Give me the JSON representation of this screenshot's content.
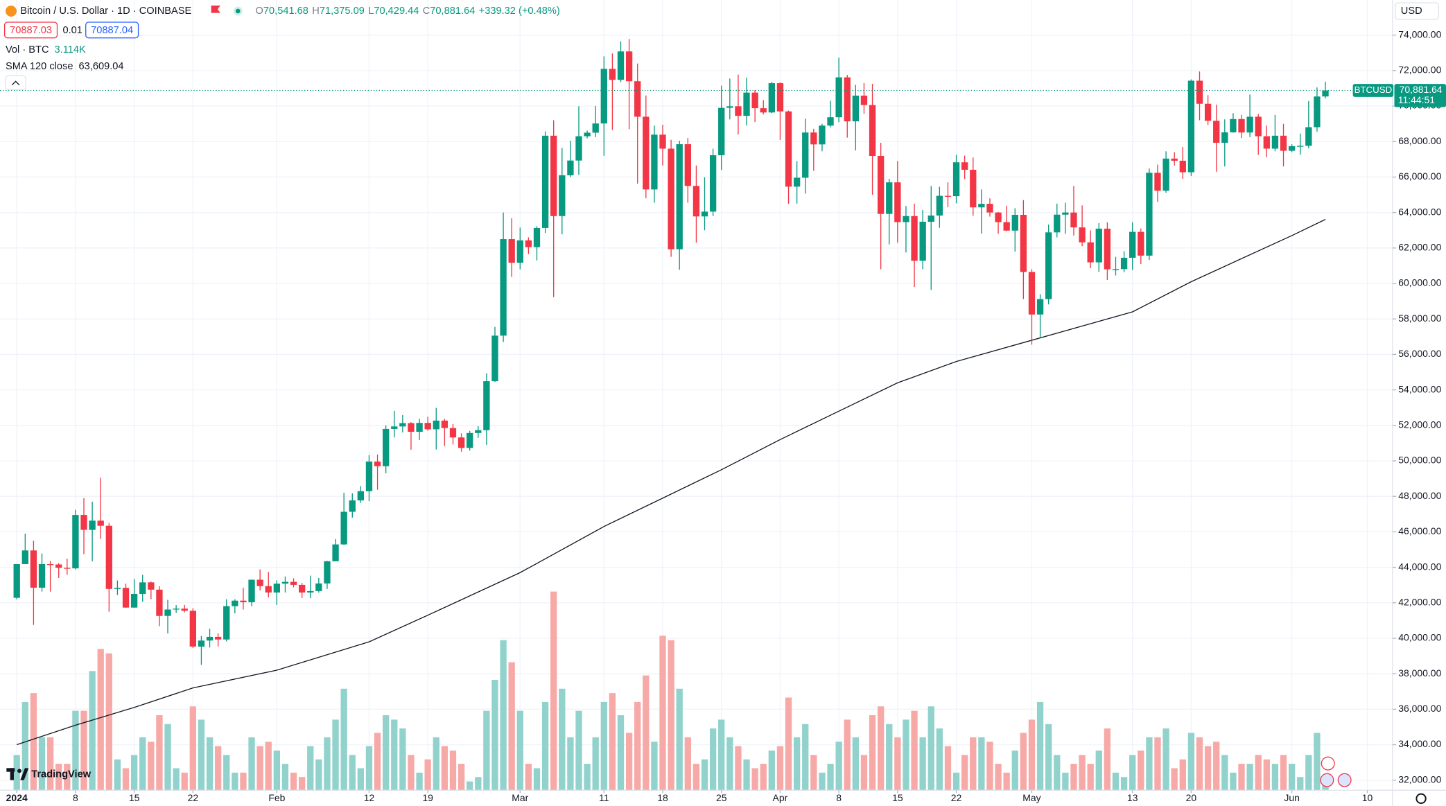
{
  "chart_data": {
    "type": "candlestick",
    "title": "Bitcoin / U.S. Dollar · 1D · COINBASE",
    "legend_fields": [
      {
        "key": "O",
        "value": "70,541.68"
      },
      {
        "key": "H",
        "value": "71,375.09"
      },
      {
        "key": "L",
        "value": "70,429.44"
      },
      {
        "key": "C",
        "value": "70,881.64"
      }
    ],
    "change": "+339.32 (+0.48%)",
    "bid": "70887.03",
    "spread": "0.01",
    "ask": "70887.04",
    "volume_label": "Vol · BTC",
    "volume_text": "3.114K",
    "sma_label": "SMA 120 close",
    "sma_text": "63,609.04",
    "currency": "USD",
    "price_tag": {
      "symbol": "BTCUSD",
      "price": "70,881.64",
      "countdown": "11:44:51"
    },
    "logo": "TradingView",
    "up_color": "#089981",
    "down_color": "#f23645",
    "volume_up_color": "#92d2cc",
    "volume_down_color": "#f7a9a7",
    "grid": true,
    "xlim": [
      "2023-12-30",
      "2024-06-13"
    ],
    "ylim": [
      31430,
      75980
    ],
    "xticks": [
      {
        "value": "2024-01-01",
        "label": "2024"
      },
      {
        "value": "2024-01-08",
        "label": "8"
      },
      {
        "value": "2024-01-15",
        "label": "15"
      },
      {
        "value": "2024-01-22",
        "label": "22"
      },
      {
        "value": "2024-02-01",
        "label": "Feb"
      },
      {
        "value": "2024-02-12",
        "label": "12"
      },
      {
        "value": "2024-02-19",
        "label": "19"
      },
      {
        "value": "2024-03-01",
        "label": "Mar"
      },
      {
        "value": "2024-03-11",
        "label": "11"
      },
      {
        "value": "2024-03-18",
        "label": "18"
      },
      {
        "value": "2024-03-25",
        "label": "25"
      },
      {
        "value": "2024-04-01",
        "label": "Apr"
      },
      {
        "value": "2024-04-08",
        "label": "8"
      },
      {
        "value": "2024-04-15",
        "label": "15"
      },
      {
        "value": "2024-04-22",
        "label": "22"
      },
      {
        "value": "2024-05-01",
        "label": "May"
      },
      {
        "value": "2024-05-13",
        "label": "13"
      },
      {
        "value": "2024-05-20",
        "label": "20"
      },
      {
        "value": "2024-06-01",
        "label": "Jun"
      },
      {
        "value": "2024-06-10",
        "label": "10"
      }
    ],
    "yticks": [
      {
        "value": 32000,
        "label": "32,000.00"
      },
      {
        "value": 34000,
        "label": "34,000.00"
      },
      {
        "value": 36000,
        "label": "36,000.00"
      },
      {
        "value": 38000,
        "label": "38,000.00"
      },
      {
        "value": 40000,
        "label": "40,000.00"
      },
      {
        "value": 42000,
        "label": "42,000.00"
      },
      {
        "value": 44000,
        "label": "44,000.00"
      },
      {
        "value": 46000,
        "label": "46,000.00"
      },
      {
        "value": 48000,
        "label": "48,000.00"
      },
      {
        "value": 50000,
        "label": "50,000.00"
      },
      {
        "value": 52000,
        "label": "52,000.00"
      },
      {
        "value": 54000,
        "label": "54,000.00"
      },
      {
        "value": 56000,
        "label": "56,000.00"
      },
      {
        "value": 58000,
        "label": "58,000.00"
      },
      {
        "value": 60000,
        "label": "60,000.00"
      },
      {
        "value": 62000,
        "label": "62,000.00"
      },
      {
        "value": 64000,
        "label": "64,000.00"
      },
      {
        "value": 66000,
        "label": "66,000.00"
      },
      {
        "value": 68000,
        "label": "68,000.00"
      },
      {
        "value": 70000,
        "label": "70,000.00"
      },
      {
        "value": 72000,
        "label": "72,000.00"
      },
      {
        "value": 74000,
        "label": "74,000.00"
      }
    ],
    "x": [
      "2024-01-01",
      "2024-01-02",
      "2024-01-03",
      "2024-01-04",
      "2024-01-05",
      "2024-01-06",
      "2024-01-07",
      "2024-01-08",
      "2024-01-09",
      "2024-01-10",
      "2024-01-11",
      "2024-01-12",
      "2024-01-13",
      "2024-01-14",
      "2024-01-15",
      "2024-01-16",
      "2024-01-17",
      "2024-01-18",
      "2024-01-19",
      "2024-01-20",
      "2024-01-21",
      "2024-01-22",
      "2024-01-23",
      "2024-01-24",
      "2024-01-25",
      "2024-01-26",
      "2024-01-27",
      "2024-01-28",
      "2024-01-29",
      "2024-01-30",
      "2024-01-31",
      "2024-02-01",
      "2024-02-02",
      "2024-02-03",
      "2024-02-04",
      "2024-02-05",
      "2024-02-06",
      "2024-02-07",
      "2024-02-08",
      "2024-02-09",
      "2024-02-10",
      "2024-02-11",
      "2024-02-12",
      "2024-02-13",
      "2024-02-14",
      "2024-02-15",
      "2024-02-16",
      "2024-02-17",
      "2024-02-18",
      "2024-02-19",
      "2024-02-20",
      "2024-02-21",
      "2024-02-22",
      "2024-02-23",
      "2024-02-24",
      "2024-02-25",
      "2024-02-26",
      "2024-02-27",
      "2024-02-28",
      "2024-02-29",
      "2024-03-01",
      "2024-03-02",
      "2024-03-03",
      "2024-03-04",
      "2024-03-05",
      "2024-03-06",
      "2024-03-07",
      "2024-03-08",
      "2024-03-09",
      "2024-03-10",
      "2024-03-11",
      "2024-03-12",
      "2024-03-13",
      "2024-03-14",
      "2024-03-15",
      "2024-03-16",
      "2024-03-17",
      "2024-03-18",
      "2024-03-19",
      "2024-03-20",
      "2024-03-21",
      "2024-03-22",
      "2024-03-23",
      "2024-03-24",
      "2024-03-25",
      "2024-03-26",
      "2024-03-27",
      "2024-03-28",
      "2024-03-29",
      "2024-03-30",
      "2024-03-31",
      "2024-04-01",
      "2024-04-02",
      "2024-04-03",
      "2024-04-04",
      "2024-04-05",
      "2024-04-06",
      "2024-04-07",
      "2024-04-08",
      "2024-04-09",
      "2024-04-10",
      "2024-04-11",
      "2024-04-12",
      "2024-04-13",
      "2024-04-14",
      "2024-04-15",
      "2024-04-16",
      "2024-04-17",
      "2024-04-18",
      "2024-04-19",
      "2024-04-20",
      "2024-04-21",
      "2024-04-22",
      "2024-04-23",
      "2024-04-24",
      "2024-04-25",
      "2024-04-26",
      "2024-04-27",
      "2024-04-28",
      "2024-04-29",
      "2024-04-30",
      "2024-05-01",
      "2024-05-02",
      "2024-05-03",
      "2024-05-04",
      "2024-05-05",
      "2024-05-06",
      "2024-05-07",
      "2024-05-08",
      "2024-05-09",
      "2024-05-10",
      "2024-05-11",
      "2024-05-12",
      "2024-05-13",
      "2024-05-14",
      "2024-05-15",
      "2024-05-16",
      "2024-05-17",
      "2024-05-18",
      "2024-05-19",
      "2024-05-20",
      "2024-05-21",
      "2024-05-22",
      "2024-05-23",
      "2024-05-24",
      "2024-05-25",
      "2024-05-26",
      "2024-05-27",
      "2024-05-28",
      "2024-05-29",
      "2024-05-30",
      "2024-05-31",
      "2024-06-01",
      "2024-06-02",
      "2024-06-03",
      "2024-06-04",
      "2024-06-05"
    ],
    "open": [
      42280,
      44180,
      44950,
      42850,
      44180,
      44160,
      43970,
      43940,
      46950,
      46110,
      46630,
      46340,
      42780,
      42840,
      41730,
      42500,
      43150,
      42740,
      41260,
      41620,
      41670,
      41550,
      39530,
      39870,
      40080,
      39930,
      41810,
      42120,
      42030,
      43300,
      42940,
      42580,
      43080,
      43180,
      43010,
      42580,
      42660,
      43090,
      44340,
      45290,
      47130,
      47770,
      48290,
      49960,
      49700,
      51800,
      51940,
      52130,
      51640,
      52140,
      51780,
      52270,
      51850,
      51320,
      50730,
      51570,
      51730,
      54490,
      57060,
      62500,
      61170,
      62430,
      62050,
      63130,
      68330,
      63800,
      66100,
      66930,
      68300,
      68500,
      69020,
      72100,
      71480,
      73080,
      71400,
      69400,
      65300,
      68390,
      67600,
      61930,
      67850,
      65500,
      63780,
      64050,
      67230,
      69900,
      69990,
      69450,
      70760,
      69880,
      69640,
      71290,
      69700,
      65460,
      65960,
      68510,
      67840,
      68900,
      69370,
      71620,
      69140,
      70590,
      70060,
      67190,
      63920,
      65700,
      63460,
      63800,
      61280,
      63480,
      63830,
      64940,
      64920,
      66830,
      66410,
      64290,
      64490,
      64000,
      63460,
      62980,
      63870,
      60650,
      58250,
      59120,
      62880,
      63880,
      64000,
      63160,
      62320,
      61190,
      63090,
      60800,
      60810,
      61450,
      62910,
      61570,
      66240,
      65230,
      67040,
      66920,
      66270,
      71430,
      70130,
      69170,
      67930,
      68520,
      69270,
      68510,
      69400,
      68300,
      67600,
      68330,
      67480,
      67740,
      67760,
      68810,
      70541.68
    ],
    "high": [
      44190,
      45900,
      45500,
      44780,
      44350,
      44240,
      44490,
      47240,
      47900,
      47700,
      49050,
      46500,
      43260,
      43080,
      43340,
      43580,
      43200,
      42930,
      42170,
      41870,
      41880,
      41690,
      40130,
      40540,
      40280,
      42200,
      42200,
      42850,
      43310,
      43880,
      43740,
      43270,
      43480,
      43380,
      43120,
      43530,
      43400,
      44370,
      45590,
      48200,
      48170,
      48580,
      50330,
      50360,
      52000,
      52820,
      52580,
      52180,
      52370,
      52490,
      52990,
      52370,
      52080,
      51550,
      51690,
      51960,
      54940,
      57550,
      64000,
      63680,
      63150,
      62600,
      63230,
      68570,
      69200,
      67640,
      68050,
      69990,
      68620,
      70000,
      72800,
      72970,
      73650,
      73780,
      72400,
      70600,
      68900,
      68950,
      68100,
      68050,
      68200,
      66650,
      65980,
      67600,
      71150,
      71550,
      71770,
      71600,
      70900,
      70330,
      71360,
      71340,
      69750,
      66900,
      69290,
      68720,
      69000,
      70300,
      72730,
      71760,
      71200,
      71300,
      71250,
      67930,
      65900,
      66900,
      64370,
      64500,
      64150,
      65500,
      65450,
      65700,
      67250,
      67210,
      67100,
      65300,
      64800,
      64030,
      64380,
      64240,
      64700,
      60800,
      59400,
      63320,
      64500,
      64550,
      65500,
      64400,
      62990,
      63400,
      63450,
      61500,
      61820,
      63450,
      63100,
      66480,
      66700,
      67450,
      67400,
      67700,
      71500,
      71950,
      70620,
      70080,
      69250,
      69600,
      69500,
      70650,
      69550,
      68900,
      69500,
      69000,
      67850,
      68450,
      70280,
      71050,
      71375.09
    ],
    "low": [
      42190,
      44180,
      40750,
      42630,
      42630,
      43400,
      43580,
      43880,
      44740,
      44340,
      45600,
      41500,
      42440,
      41720,
      41720,
      42060,
      42200,
      40680,
      40270,
      41430,
      41460,
      39450,
      38500,
      39480,
      39530,
      39820,
      41400,
      41620,
      41800,
      42690,
      42300,
      41880,
      42580,
      42870,
      42270,
      42260,
      42580,
      42780,
      44340,
      45270,
      46800,
      47630,
      47730,
      48370,
      49300,
      51320,
      51600,
      50630,
      51180,
      51700,
      50640,
      50840,
      50930,
      50520,
      50580,
      51300,
      50900,
      54450,
      56700,
      60370,
      60800,
      61660,
      61300,
      62850,
      59230,
      62770,
      66000,
      66120,
      68180,
      68250,
      67200,
      68650,
      71350,
      68700,
      65630,
      64800,
      64550,
      66650,
      61500,
      60780,
      64550,
      62300,
      63000,
      63800,
      66400,
      69250,
      68400,
      68900,
      69100,
      69530,
      69600,
      68100,
      64500,
      64500,
      65060,
      66350,
      67450,
      68800,
      69090,
      68220,
      67500,
      69570,
      65000,
      60800,
      62200,
      62300,
      61750,
      59800,
      60800,
      59640,
      63140,
      64300,
      64520,
      65880,
      63820,
      62810,
      63770,
      62800,
      62950,
      61800,
      59120,
      56550,
      56980,
      58820,
      62600,
      62800,
      62700,
      62100,
      60860,
      60650,
      60200,
      60450,
      60630,
      60760,
      61100,
      61320,
      64600,
      65120,
      66650,
      65900,
      66060,
      69200,
      68940,
      66300,
      66600,
      68500,
      68200,
      68250,
      67250,
      67120,
      67450,
      66600,
      67400,
      67260,
      67620,
      68560,
      70429.44
    ],
    "close": [
      44180,
      44950,
      42850,
      44180,
      44160,
      43970,
      43940,
      46950,
      46110,
      46630,
      46340,
      42780,
      42840,
      41730,
      42500,
      43150,
      42740,
      41260,
      41620,
      41670,
      41550,
      39530,
      39870,
      40080,
      39930,
      41810,
      42120,
      42030,
      43300,
      42940,
      42580,
      43080,
      43180,
      43010,
      42580,
      42660,
      43090,
      44340,
      45290,
      47130,
      47770,
      48290,
      49960,
      49700,
      51800,
      51940,
      52130,
      51640,
      52140,
      51780,
      52270,
      51850,
      51320,
      50730,
      51570,
      51730,
      54490,
      57060,
      62500,
      61170,
      62430,
      62050,
      63130,
      68330,
      63800,
      66100,
      66930,
      68300,
      68500,
      69020,
      72100,
      71480,
      73080,
      71400,
      69400,
      65300,
      68390,
      67600,
      61930,
      67850,
      65500,
      63780,
      64050,
      67230,
      69900,
      69990,
      69450,
      70760,
      69880,
      69640,
      71290,
      69700,
      65460,
      65960,
      68510,
      67840,
      68900,
      69370,
      71620,
      69140,
      70590,
      70060,
      67190,
      63920,
      65700,
      63460,
      63800,
      61280,
      63480,
      63830,
      64940,
      64920,
      66830,
      66410,
      64290,
      64490,
      64000,
      63460,
      62980,
      63870,
      60650,
      58250,
      59120,
      62880,
      63880,
      64000,
      63160,
      62320,
      61190,
      63090,
      60800,
      60810,
      61450,
      62910,
      61570,
      66240,
      65230,
      67040,
      66920,
      66270,
      71430,
      70130,
      69170,
      67930,
      68520,
      69270,
      68510,
      69400,
      68300,
      67600,
      68330,
      67480,
      67740,
      67760,
      68810,
      70540,
      70881.64
    ],
    "volume": [
      8000,
      20000,
      22000,
      12000,
      12000,
      6000,
      6000,
      18000,
      18000,
      27000,
      32000,
      31000,
      7000,
      5000,
      8000,
      12000,
      11000,
      17000,
      15000,
      5000,
      4000,
      19000,
      16000,
      12000,
      10000,
      8000,
      4000,
      4000,
      12000,
      10000,
      11000,
      9000,
      6000,
      4000,
      3000,
      10000,
      7000,
      12000,
      16000,
      23000,
      8000,
      5000,
      10000,
      13000,
      17000,
      16000,
      14000,
      8000,
      4000,
      7000,
      12000,
      10000,
      9000,
      6000,
      2000,
      3000,
      18000,
      25000,
      34000,
      29000,
      18000,
      6000,
      5000,
      20000,
      45000,
      23000,
      12000,
      18000,
      6000,
      12000,
      20000,
      22000,
      17000,
      13000,
      20000,
      26000,
      11000,
      35000,
      34000,
      23000,
      12000,
      6000,
      7000,
      14000,
      16000,
      12000,
      10000,
      7000,
      5000,
      6000,
      9000,
      10000,
      21000,
      12000,
      15000,
      8000,
      4000,
      6000,
      11000,
      16000,
      12000,
      8000,
      17000,
      19000,
      15000,
      12000,
      16000,
      18000,
      12000,
      19000,
      14000,
      10000,
      4000,
      8000,
      12000,
      12000,
      11000,
      6000,
      4000,
      9000,
      13000,
      16000,
      20000,
      15000,
      8000,
      4000,
      6000,
      8000,
      6000,
      9000,
      14000,
      4000,
      3000,
      8000,
      9000,
      12000,
      12000,
      14000,
      5000,
      7000,
      13000,
      12000,
      10000,
      11000,
      8000,
      4000,
      6000,
      6000,
      8000,
      7000,
      6000,
      8000,
      6000,
      3000,
      8000,
      13000,
      3114
    ],
    "sma": {
      "color": "#131722",
      "x": [
        "2024-01-01",
        "2024-01-08",
        "2024-01-15",
        "2024-01-22",
        "2024-02-01",
        "2024-02-12",
        "2024-02-19",
        "2024-03-01",
        "2024-03-11",
        "2024-03-18",
        "2024-03-25",
        "2024-04-01",
        "2024-04-08",
        "2024-04-15",
        "2024-04-22",
        "2024-05-01",
        "2024-05-13",
        "2024-05-20",
        "2024-06-01",
        "2024-06-05"
      ],
      "values": [
        34000,
        35100,
        36100,
        37200,
        38200,
        39800,
        41300,
        43700,
        46300,
        47900,
        49500,
        51200,
        52800,
        54400,
        55600,
        56800,
        58400,
        60100,
        62700,
        63609.04
      ]
    }
  }
}
